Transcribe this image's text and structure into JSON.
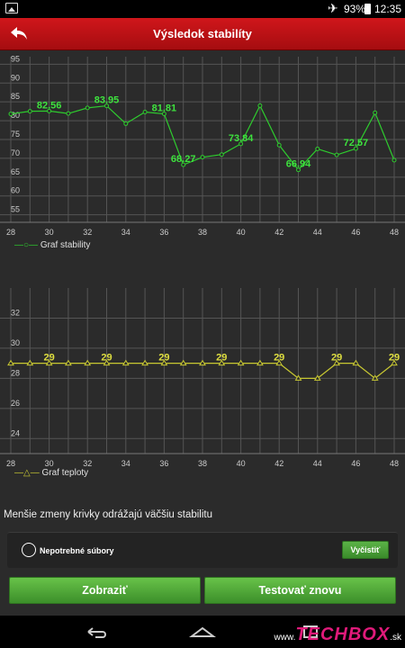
{
  "status_bar": {
    "battery": "93%",
    "time": "12:35"
  },
  "header": {
    "title": "Výsledok stabilíty",
    "back_label": ""
  },
  "stability_chart": {
    "legend": "Graf stability",
    "y_ticks": [
      "95",
      "90",
      "85",
      "80",
      "75",
      "70",
      "65",
      "60",
      "55"
    ],
    "x_ticks": [
      "28",
      "30",
      "32",
      "34",
      "36",
      "38",
      "40",
      "42",
      "44",
      "46",
      "48"
    ]
  },
  "temperature_chart": {
    "legend": "Graf teploty",
    "y_ticks": [
      "32",
      "30",
      "28",
      "26",
      "24"
    ],
    "x_ticks": [
      "28",
      "30",
      "32",
      "34",
      "36",
      "38",
      "40",
      "42",
      "44",
      "46",
      "48"
    ]
  },
  "note": "Menšie zmeny krivky odrážajú väčšiu stabilitu",
  "cleanup": {
    "label": "Nepotrebné súbory",
    "button": "Vyčistiť"
  },
  "buttons": {
    "show": "Zobraziť",
    "retest": "Testovať znovu"
  },
  "watermark": {
    "prefix": "www.",
    "brand": "TECHBOX",
    "suffix": ".sk"
  },
  "colors": {
    "accent_red": "#c8141a",
    "stability_line": "#2ecc2e",
    "temperature_line": "#c8c832",
    "button_green": "#4fa83a"
  },
  "chart_data": [
    {
      "type": "line",
      "title": "",
      "x": [
        28,
        29,
        30,
        31,
        32,
        33,
        34,
        35,
        36,
        37,
        38,
        39,
        40,
        41,
        42,
        43,
        44,
        45,
        46,
        47,
        48
      ],
      "series": [
        {
          "name": "Graf stability",
          "values": [
            81.8,
            82.5,
            82.56,
            81.9,
            83.4,
            83.95,
            79.2,
            82.3,
            81.81,
            68.27,
            70.3,
            71.0,
            73.84,
            84.0,
            73.5,
            66.94,
            72.5,
            70.9,
            72.57,
            82.1,
            69.5
          ]
        }
      ],
      "data_labels": [
        {
          "x": 30,
          "label": "82.56"
        },
        {
          "x": 33,
          "label": "83.95"
        },
        {
          "x": 36,
          "label": "81.81"
        },
        {
          "x": 37,
          "label": "68.27"
        },
        {
          "x": 40,
          "label": "73.84"
        },
        {
          "x": 43,
          "label": "66.94"
        },
        {
          "x": 46,
          "label": "72.57"
        }
      ],
      "xlim": [
        28,
        48
      ],
      "ylim": [
        53,
        97
      ],
      "grid": true,
      "legend": "bottom-left"
    },
    {
      "type": "line",
      "title": "",
      "x": [
        28,
        29,
        30,
        31,
        32,
        33,
        34,
        35,
        36,
        37,
        38,
        39,
        40,
        41,
        42,
        43,
        44,
        45,
        46,
        47,
        48
      ],
      "series": [
        {
          "name": "Graf teploty",
          "values": [
            29,
            29,
            29,
            29,
            29,
            29,
            29,
            29,
            29,
            29,
            29,
            29,
            29,
            29,
            29,
            28,
            28,
            29,
            29,
            28,
            29
          ]
        }
      ],
      "data_labels": [
        {
          "x": 30,
          "label": "29"
        },
        {
          "x": 33,
          "label": "29"
        },
        {
          "x": 36,
          "label": "29"
        },
        {
          "x": 39,
          "label": "29"
        },
        {
          "x": 42,
          "label": "29"
        },
        {
          "x": 45,
          "label": "29"
        },
        {
          "x": 48,
          "label": "29"
        }
      ],
      "xlim": [
        28,
        48
      ],
      "ylim": [
        23,
        34
      ],
      "grid": true,
      "legend": "bottom-left"
    }
  ]
}
